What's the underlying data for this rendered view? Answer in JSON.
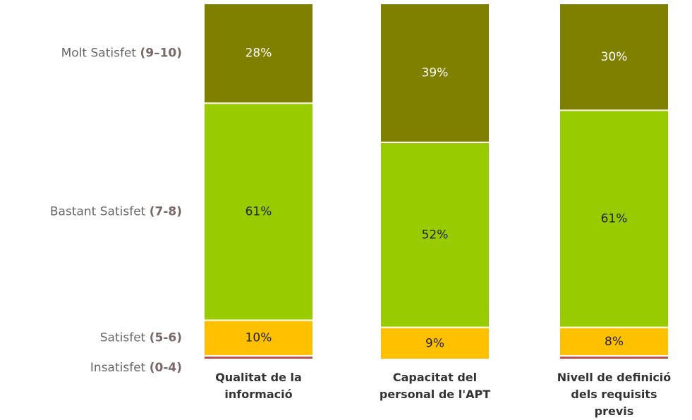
{
  "chart_data": {
    "type": "stacked_bar",
    "categories": [
      "Qualitat de la informació",
      "Capacitat del personal de l'APT",
      "Nivell de definició dels requisits previs"
    ],
    "ylim": [
      0,
      100
    ],
    "series": [
      {
        "name": "Insatisfet",
        "range": "(0-4)",
        "color": "#c0504d",
        "values": [
          1,
          0,
          1
        ]
      },
      {
        "name": "Satisfet",
        "range": "(5-6)",
        "color": "#ffc000",
        "values": [
          10,
          9,
          8
        ],
        "value_labels": [
          "10%",
          "9%",
          "8%"
        ]
      },
      {
        "name": "Bastant Satisfet",
        "range": "(7-8)",
        "color": "#99cc00",
        "values": [
          61,
          52,
          61
        ],
        "value_labels": [
          "61%",
          "52%",
          "61%"
        ]
      },
      {
        "name": "Molt Satisfet",
        "range": "(9–10)",
        "color": "#808000",
        "values": [
          28,
          39,
          30
        ],
        "value_labels": [
          "28%",
          "39%",
          "30%"
        ]
      }
    ]
  }
}
